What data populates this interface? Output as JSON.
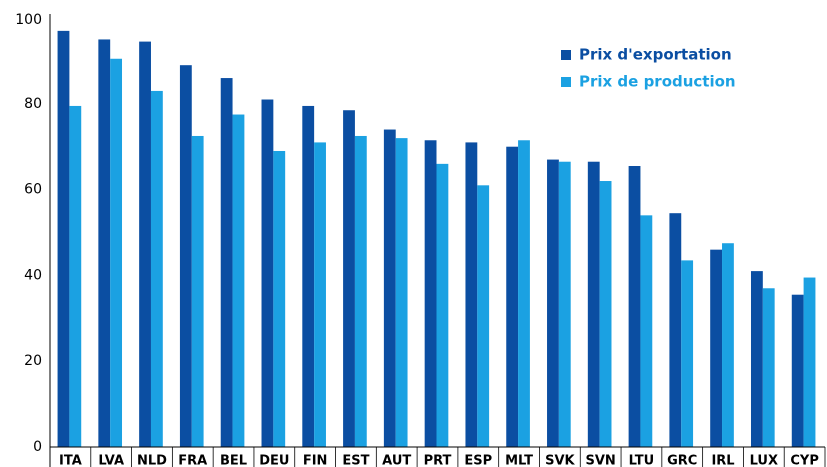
{
  "chart_data": {
    "type": "bar",
    "categories": [
      "ITA",
      "LVA",
      "NLD",
      "FRA",
      "BEL",
      "DEU",
      "FIN",
      "EST",
      "AUT",
      "PRT",
      "ESP",
      "MLT",
      "SVK",
      "SVN",
      "LTU",
      "GRC",
      "IRL",
      "LUX",
      "CYP"
    ],
    "series": [
      {
        "name": "Prix d'exportation",
        "color": "#0b4ea2",
        "values": [
          97,
          95,
          94.5,
          89,
          86,
          81,
          79.5,
          78.5,
          74,
          71.5,
          71,
          70,
          67,
          66.5,
          65.5,
          54.5,
          46,
          41,
          35.5
        ]
      },
      {
        "name": "Prix de production",
        "color": "#1ba1e2",
        "values": [
          79.5,
          90.5,
          83,
          72.5,
          77.5,
          69,
          71,
          72.5,
          72,
          66,
          61,
          71.5,
          66.5,
          62,
          54,
          43.5,
          47.5,
          37,
          39.5
        ]
      }
    ],
    "ylim": [
      0,
      100
    ],
    "yticks": [
      0,
      20,
      40,
      60,
      80,
      100
    ],
    "grid": false,
    "legend": "top-right"
  }
}
